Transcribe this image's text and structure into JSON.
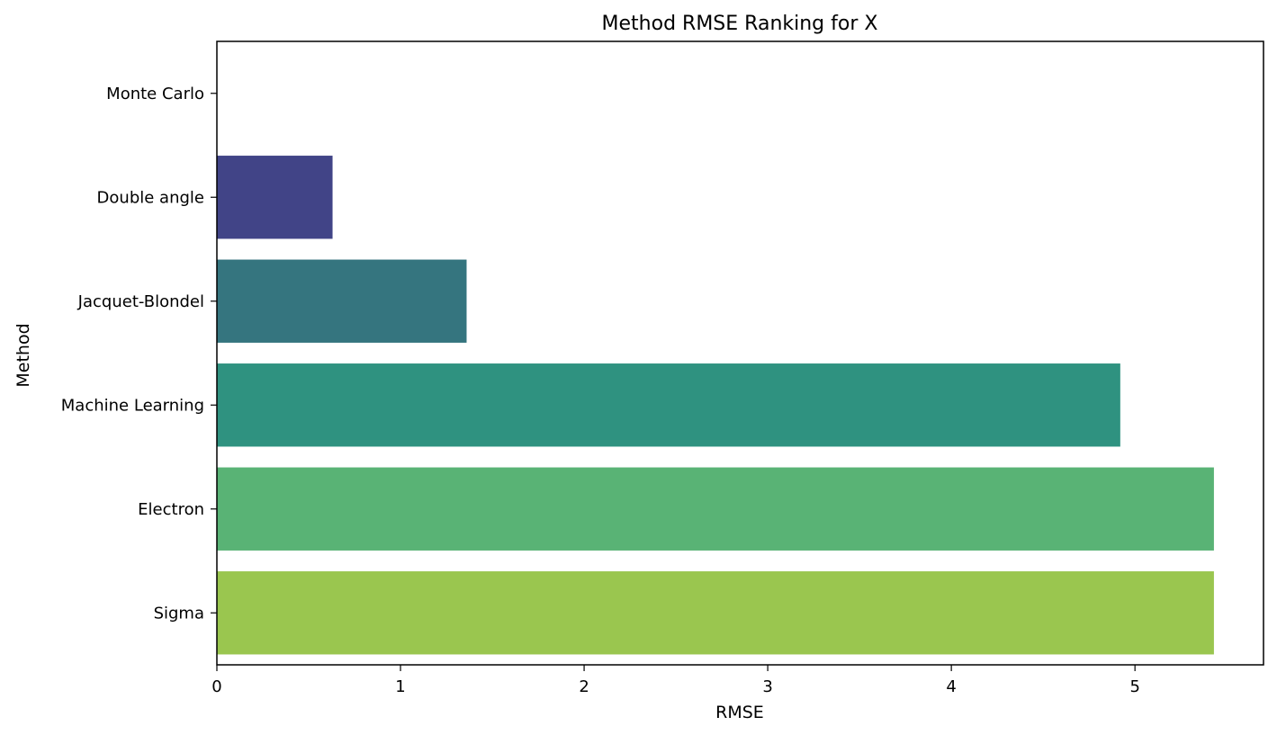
{
  "chart_data": {
    "type": "bar",
    "orientation": "horizontal",
    "title": "Method RMSE Ranking for X",
    "xlabel": "RMSE",
    "ylabel": "Method",
    "categories": [
      "Monte Carlo",
      "Double angle",
      "Jacquet-Blondel",
      "Machine Learning",
      "Electron",
      "Sigma"
    ],
    "values": [
      0.0,
      0.63,
      1.36,
      4.92,
      5.43,
      5.43
    ],
    "colors": [
      "#482475",
      "#414487",
      "#35757f",
      "#2f9280",
      "#59b375",
      "#9ac64f"
    ],
    "xlim": [
      0,
      5.7
    ],
    "xticks": [
      0,
      1,
      2,
      3,
      4,
      5
    ],
    "xtick_labels": [
      "0",
      "1",
      "2",
      "3",
      "4",
      "5"
    ],
    "grid": false,
    "legend": "none"
  }
}
